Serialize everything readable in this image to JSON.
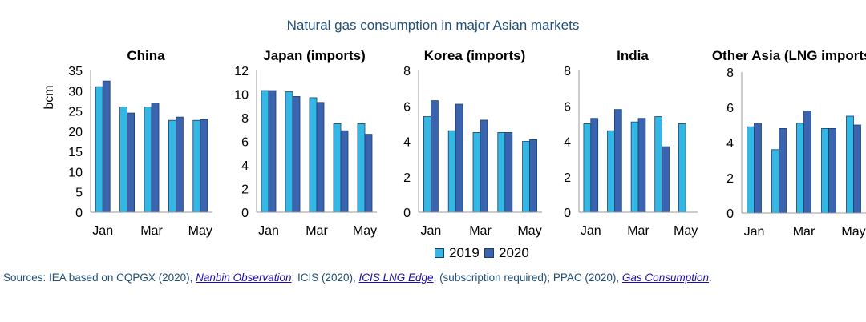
{
  "title": "Natural gas consumption in major Asian markets",
  "colors": {
    "2019": "#33b8e6",
    "2020": "#3b64b0",
    "border": "#1d3e69"
  },
  "legend": {
    "series_2019": "2019",
    "series_2020": "2020"
  },
  "sources": {
    "prefix": "Sources: IEA based on CQPGX (2020), ",
    "link1": "Nanbin Observation",
    "mid1": "; ICIS (2020), ",
    "link2": "ICIS LNG Edge",
    "mid2": ", (subscription required); PPAC (2020), ",
    "link3": "Gas Consumption",
    "suffix": "."
  },
  "chart_data": [
    {
      "type": "bar",
      "title": "China",
      "ylabel": "bcm",
      "categories": [
        "Jan",
        "Feb",
        "Mar",
        "Apr",
        "May"
      ],
      "xtick_labels": [
        "Jan",
        "",
        "Mar",
        "",
        "May"
      ],
      "ylim": [
        0,
        35
      ],
      "yticks": [
        0,
        5,
        10,
        15,
        20,
        25,
        30,
        35
      ],
      "series": [
        {
          "name": "2019",
          "values": [
            31.0,
            26.0,
            26.0,
            22.7,
            22.7
          ]
        },
        {
          "name": "2020",
          "values": [
            32.4,
            24.5,
            27.0,
            23.5,
            22.9
          ]
        }
      ]
    },
    {
      "type": "bar",
      "title": "Japan (imports)",
      "ylabel": "",
      "categories": [
        "Jan",
        "Feb",
        "Mar",
        "Apr",
        "May"
      ],
      "xtick_labels": [
        "Jan",
        "",
        "Mar",
        "",
        "May"
      ],
      "ylim": [
        0,
        12
      ],
      "yticks": [
        0,
        2,
        4,
        6,
        8,
        10,
        12
      ],
      "series": [
        {
          "name": "2019",
          "values": [
            10.3,
            10.2,
            9.7,
            7.5,
            7.5
          ]
        },
        {
          "name": "2020",
          "values": [
            10.3,
            9.8,
            9.3,
            6.9,
            6.6
          ]
        }
      ]
    },
    {
      "type": "bar",
      "title": "Korea (imports)",
      "ylabel": "",
      "categories": [
        "Jan",
        "Feb",
        "Mar",
        "Apr",
        "May"
      ],
      "xtick_labels": [
        "Jan",
        "",
        "Mar",
        "",
        "May"
      ],
      "ylim": [
        0,
        8
      ],
      "yticks": [
        0,
        2,
        4,
        6,
        8
      ],
      "series": [
        {
          "name": "2019",
          "values": [
            5.4,
            4.6,
            4.5,
            4.5,
            4.0
          ]
        },
        {
          "name": "2020",
          "values": [
            6.3,
            6.1,
            5.2,
            4.5,
            4.1
          ]
        }
      ]
    },
    {
      "type": "bar",
      "title": "India",
      "ylabel": "",
      "categories": [
        "Jan",
        "Feb",
        "Mar",
        "Apr",
        "May"
      ],
      "xtick_labels": [
        "Jan",
        "",
        "Mar",
        "",
        "May"
      ],
      "ylim": [
        0,
        8
      ],
      "yticks": [
        0,
        2,
        4,
        6,
        8
      ],
      "series": [
        {
          "name": "2019",
          "values": [
            5.0,
            4.6,
            5.1,
            5.4,
            5.0
          ]
        },
        {
          "name": "2020",
          "values": [
            5.3,
            5.8,
            5.3,
            3.7,
            null
          ]
        }
      ]
    },
    {
      "type": "bar",
      "title": "Other Asia (LNG imports)",
      "ylabel": "",
      "categories": [
        "Jan",
        "Feb",
        "Mar",
        "Apr",
        "May"
      ],
      "xtick_labels": [
        "Jan",
        "",
        "Mar",
        "",
        "May"
      ],
      "ylim": [
        0,
        8
      ],
      "yticks": [
        0,
        2,
        4,
        6,
        8
      ],
      "series": [
        {
          "name": "2019",
          "values": [
            4.9,
            3.6,
            5.1,
            4.8,
            5.5
          ]
        },
        {
          "name": "2020",
          "values": [
            5.1,
            4.8,
            5.8,
            4.8,
            5.0
          ]
        }
      ]
    }
  ]
}
